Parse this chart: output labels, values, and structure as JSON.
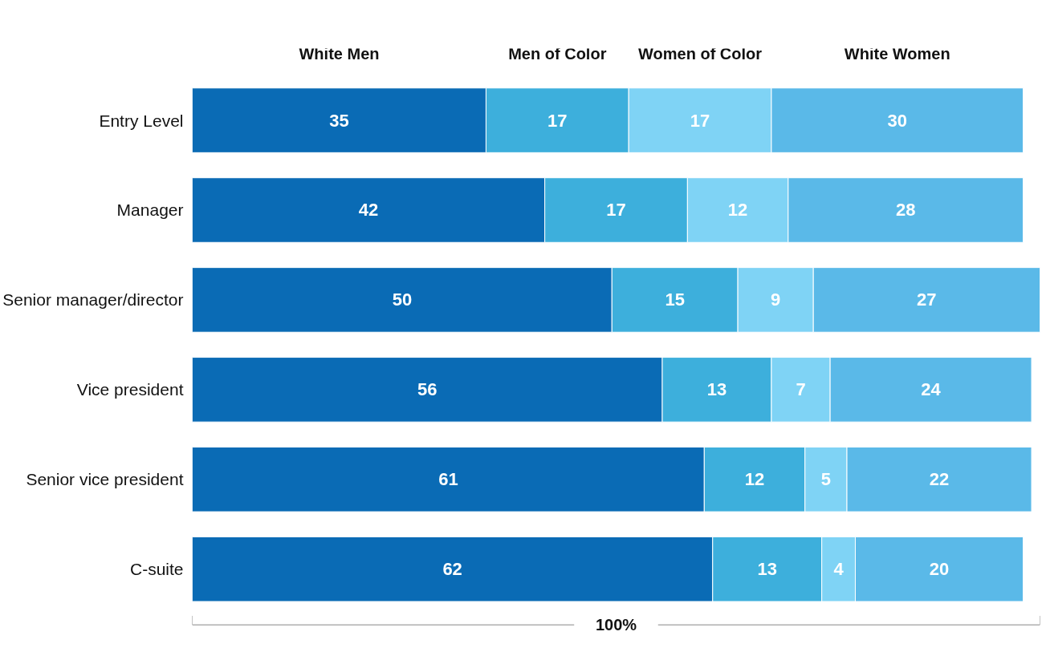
{
  "chart_data": {
    "type": "bar",
    "orientation": "horizontal",
    "stacked": true,
    "categories": [
      "Entry Level",
      "Manager",
      "Senior manager/director",
      "Vice president",
      "Senior vice president",
      "C-suite"
    ],
    "series": [
      {
        "name": "White Men",
        "color": "#0a6bb5",
        "values": [
          35,
          42,
          50,
          56,
          61,
          62
        ]
      },
      {
        "name": "Men of Color",
        "color": "#3dafdc",
        "values": [
          17,
          17,
          15,
          13,
          12,
          13
        ]
      },
      {
        "name": "Women of Color",
        "color": "#7fd3f5",
        "values": [
          17,
          12,
          9,
          7,
          5,
          4
        ]
      },
      {
        "name": "White Women",
        "color": "#5ab9e8",
        "values": [
          30,
          28,
          27,
          24,
          22,
          20
        ]
      }
    ],
    "xlim": [
      0,
      101
    ],
    "data_labels": true,
    "legend": "top",
    "grid": false,
    "tick_labels": "y",
    "annotations": [
      "100%"
    ]
  }
}
